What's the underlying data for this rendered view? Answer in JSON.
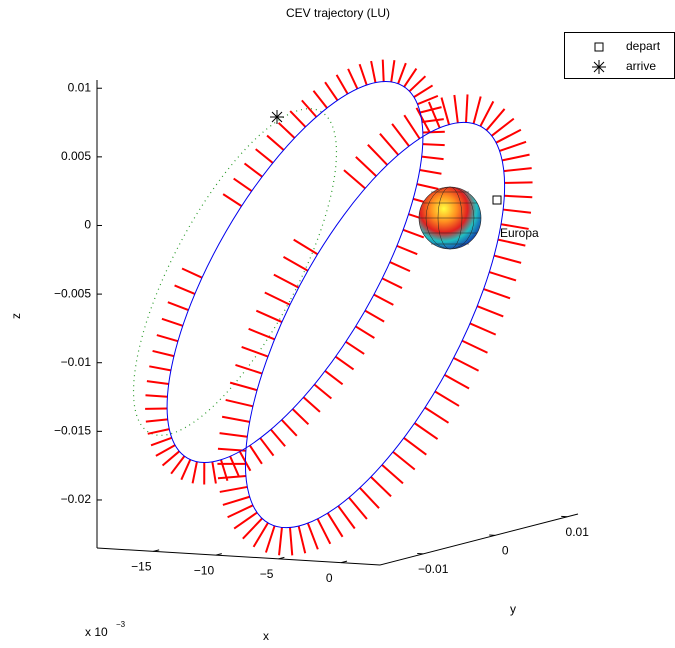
{
  "chart_data": {
    "type": "line3d",
    "title": "CEV trajectory (LU)",
    "xlabel": "x",
    "ylabel": "y",
    "zlabel": "z",
    "x_scale_base": "x 10",
    "x_scale_exponent": "−3",
    "annotation": "Europa",
    "legend": "upper right",
    "series": [
      {
        "name": "depart",
        "marker": "square",
        "color": "#000000"
      },
      {
        "name": "arrive",
        "marker": "asterisk",
        "color": "#000000"
      }
    ],
    "xlim": [
      -19.5,
      3.1
    ],
    "xticks": [
      {
        "value": -15,
        "label": "−15"
      },
      {
        "value": -10,
        "label": "−10"
      },
      {
        "value": -5,
        "label": "−5"
      },
      0
    ],
    "ylim": [
      -0.016,
      0.0115
    ],
    "yticks": [
      {
        "value": -0.01,
        "label": "−0.01"
      },
      0,
      0.01
    ],
    "zlim": [
      -0.0235,
      0.0106
    ],
    "zticks": [
      {
        "value": -0.02,
        "label": "−0.02"
      },
      {
        "value": -0.015,
        "label": "−0.015"
      },
      {
        "value": -0.01,
        "label": "−0.01"
      },
      {
        "value": -0.005,
        "label": "−0.005"
      },
      0,
      0.005,
      0.01
    ]
  }
}
